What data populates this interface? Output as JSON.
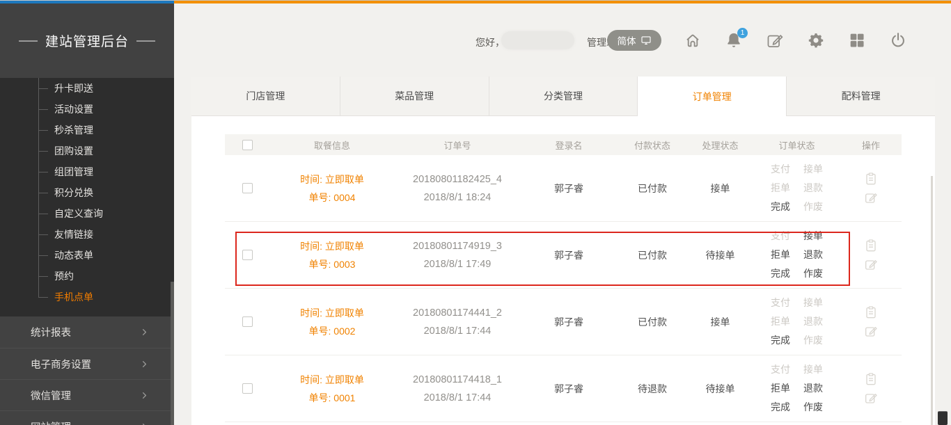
{
  "colors": {
    "accent_orange": "#f08200",
    "bar_blue": "#1d78bd",
    "bar_orange": "#f39000",
    "highlight_red": "#dc271d",
    "badge_blue": "#3fa2de"
  },
  "sidebar": {
    "title": "建站管理后台",
    "submenu": [
      "升卡即送",
      "活动设置",
      "秒杀管理",
      "团购设置",
      "组团管理",
      "积分兑换",
      "自定义查询",
      "友情链接",
      "动态表单",
      "预约",
      "手机点单"
    ],
    "active_submenu": "手机点单",
    "sections": [
      "统计报表",
      "电子商务设置",
      "微信管理",
      "网站管理"
    ]
  },
  "topbar": {
    "greeting": "您好，",
    "site_label": "管理站点:",
    "lang_pill": "简体",
    "notification_count": "1"
  },
  "tabs": {
    "labels": [
      "门店管理",
      "菜品管理",
      "分类管理",
      "订单管理",
      "配料管理"
    ],
    "active": "订单管理"
  },
  "table": {
    "headers": [
      "取餐信息",
      "订单号",
      "登录名",
      "付款状态",
      "处理状态",
      "订单状态",
      "操作"
    ],
    "status_links": [
      {
        "key": "pay",
        "label": "支付"
      },
      {
        "key": "accept",
        "label": "接单"
      },
      {
        "key": "reject",
        "label": "拒单"
      },
      {
        "key": "refund",
        "label": "退款"
      },
      {
        "key": "complete",
        "label": "完成"
      },
      {
        "key": "void",
        "label": "作废"
      }
    ],
    "rows": [
      {
        "pickup_time": "时间: 立即取单",
        "pickup_no": "单号: 0004",
        "order_no": "20180801182425_4",
        "order_date": "2018/8/1 18:24",
        "login": "郭子睿",
        "pay_status": "已付款",
        "process_status": "接单",
        "actions_enabled": [
          false,
          false,
          false,
          false,
          true,
          false
        ],
        "highlighted": false
      },
      {
        "pickup_time": "时间: 立即取单",
        "pickup_no": "单号: 0003",
        "order_no": "20180801174919_3",
        "order_date": "2018/8/1 17:49",
        "login": "郭子睿",
        "pay_status": "已付款",
        "process_status": "待接单",
        "actions_enabled": [
          false,
          true,
          true,
          true,
          true,
          true
        ],
        "highlighted": true
      },
      {
        "pickup_time": "时间: 立即取单",
        "pickup_no": "单号: 0002",
        "order_no": "20180801174441_2",
        "order_date": "2018/8/1 17:44",
        "login": "郭子睿",
        "pay_status": "已付款",
        "process_status": "接单",
        "actions_enabled": [
          false,
          false,
          false,
          false,
          true,
          false
        ],
        "highlighted": false
      },
      {
        "pickup_time": "时间: 立即取单",
        "pickup_no": "单号: 0001",
        "order_no": "20180801174418_1",
        "order_date": "2018/8/1 17:44",
        "login": "郭子睿",
        "pay_status": "待退款",
        "process_status": "待接单",
        "actions_enabled": [
          false,
          false,
          true,
          true,
          true,
          true
        ],
        "highlighted": false
      }
    ]
  }
}
